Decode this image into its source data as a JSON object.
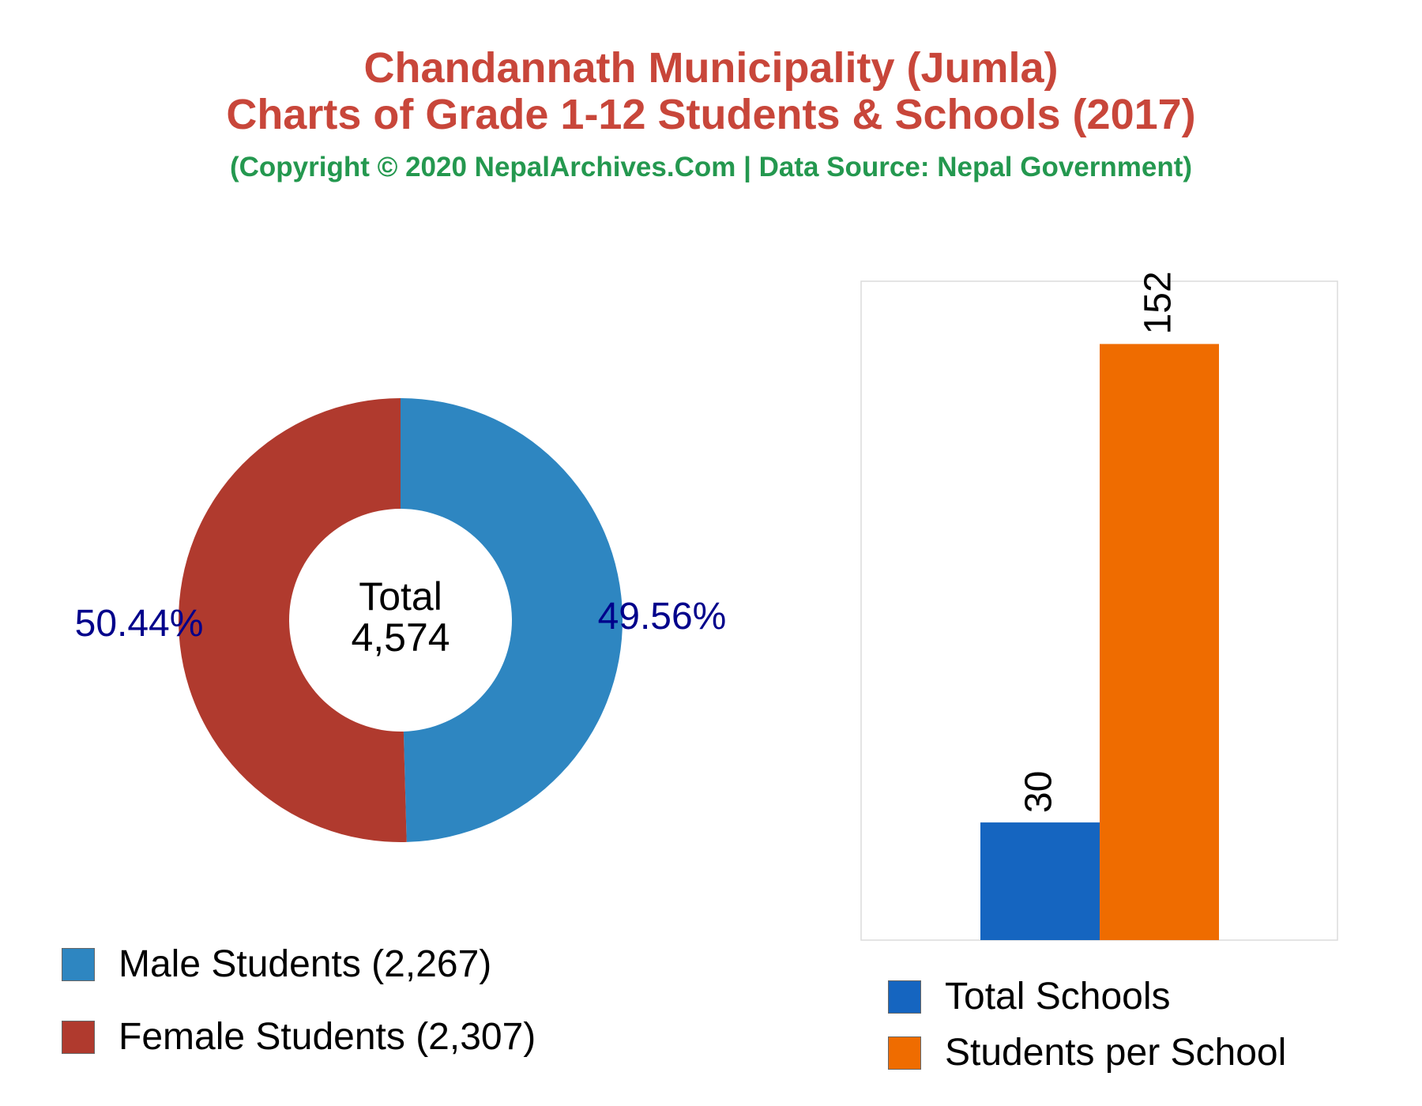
{
  "header": {
    "title_line1": "Chandannath Municipality (Jumla)",
    "title_line2": "Charts of Grade 1-12 Students & Schools (2017)",
    "subtitle": "(Copyright © 2020 NepalArchives.Com | Data Source: Nepal Government)"
  },
  "chart_data": [
    {
      "type": "pie",
      "variant": "donut",
      "center_label_line1": "Total",
      "center_label_line2": "4,574",
      "slices": [
        {
          "label": "Male Students (2,267)",
          "value": 2267,
          "percent_label": "49.56%",
          "color": "#2e86c1"
        },
        {
          "label": "Female Students (2,307)",
          "value": 2307,
          "percent_label": "50.44%",
          "color": "#b03a2e"
        }
      ],
      "legend": "bottom-left",
      "percent_label_color": "#00008b"
    },
    {
      "type": "bar",
      "categories": [
        "Total Schools",
        "Students per School"
      ],
      "values": [
        30,
        152
      ],
      "value_labels": [
        "30",
        "152"
      ],
      "colors": [
        "#1565c0",
        "#ef6c00"
      ],
      "ylim": [
        0,
        168
      ],
      "grid": false,
      "legend": "bottom"
    }
  ]
}
